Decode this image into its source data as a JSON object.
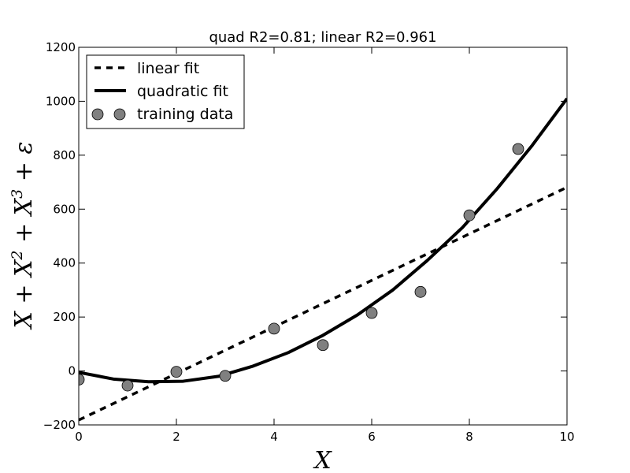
{
  "chart_data": {
    "type": "line",
    "title": "quad R2=0.81; linear R2=0.961",
    "xlabel": "X",
    "ylabel": {
      "parts": [
        "X + X",
        "2",
        " + X",
        "3",
        " + ε"
      ]
    },
    "xlim": [
      0,
      10
    ],
    "ylim": [
      -200,
      1200
    ],
    "x_ticks": [
      0,
      2,
      4,
      6,
      8,
      10
    ],
    "y_ticks": [
      -200,
      0,
      200,
      400,
      600,
      800,
      1000,
      1200
    ],
    "grid": false,
    "legend_position": "top-left",
    "series": [
      {
        "name": "linear fit",
        "style": "dashed",
        "color": "#000000",
        "x": [
          0,
          10
        ],
        "y": [
          -182,
          681
        ]
      },
      {
        "name": "quadratic fit",
        "style": "solid",
        "color": "#000000",
        "x": [
          0,
          0.71,
          1.43,
          2.14,
          2.86,
          3.57,
          4.29,
          5,
          5.71,
          6.43,
          7.14,
          7.86,
          8.57,
          9.29,
          10
        ],
        "y": [
          -5,
          -30,
          -40,
          -38,
          -20,
          18,
          68,
          132,
          208,
          300,
          410,
          532,
          676,
          837,
          1010
        ]
      },
      {
        "name": "training data",
        "style": "markers",
        "color": "#808080",
        "x": [
          0,
          1,
          2,
          3,
          4,
          5,
          6,
          7,
          8,
          9
        ],
        "y": [
          -32,
          -54,
          -3,
          -18,
          157,
          96,
          215,
          293,
          577,
          823
        ]
      }
    ]
  }
}
